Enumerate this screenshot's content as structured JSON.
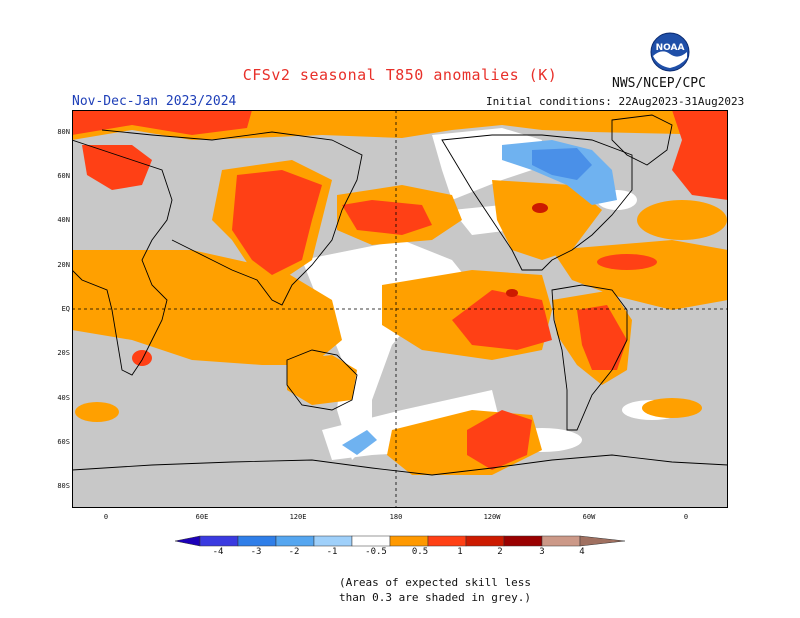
{
  "header": {
    "title": "CFSv2 seasonal T850 anomalies (K)",
    "agency": "NWS/NCEP/CPC",
    "logo_text": "NOAA",
    "period": "Nov-Dec-Jan 2023/2024",
    "initial_conditions": "Initial conditions: 22Aug2023-31Aug2023"
  },
  "map": {
    "lat_labels": [
      "80N",
      "60N",
      "40N",
      "20N",
      "EQ",
      "20S",
      "40S",
      "60S",
      "80S"
    ],
    "lon_labels": [
      "0",
      "60E",
      "120E",
      "180",
      "120W",
      "60W",
      "0"
    ]
  },
  "colorbar": {
    "labels": [
      "-4",
      "-3",
      "-2",
      "-1",
      "-0.5",
      "0.5",
      "1",
      "2",
      "3",
      "4"
    ],
    "colors": [
      "#1c00b8",
      "#3a3ae0",
      "#2f7ee8",
      "#55a6f0",
      "#9fd0fa",
      "#ffffff",
      "#ff9900",
      "#ff4015",
      "#cc1a00",
      "#990000",
      "#cc9988",
      "#a07060"
    ]
  },
  "note": {
    "line1": "(Areas of expected skill less",
    "line2": "than 0.3 are shaded in grey.)"
  },
  "colors": {
    "grey": "#c8c8c8",
    "orange": "#ffa000",
    "red": "#ff4015",
    "darkred": "#cc1a00",
    "lightblue": "#6fb2f0",
    "blue": "#4a90e8"
  }
}
